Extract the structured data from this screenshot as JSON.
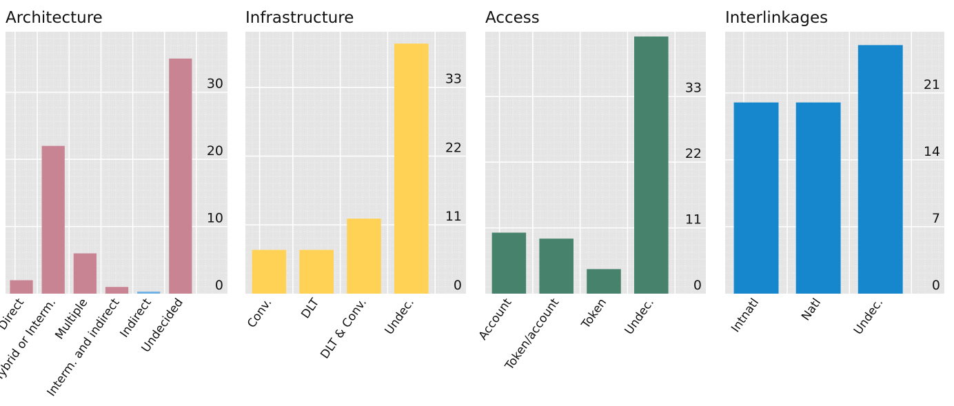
{
  "colors": {
    "panel_bg": "#e5e5e5",
    "grid": "#ffffff",
    "text": "#111111"
  },
  "chart_data": [
    {
      "type": "bar",
      "title": "Architecture",
      "categories": [
        "Direct",
        "Hybrid or Interm.",
        "Multiple",
        "Interm. and indirect",
        "Indirect",
        "Undecided"
      ],
      "values": [
        2,
        22,
        6,
        1,
        0.3,
        35
      ],
      "ylim": [
        0,
        39
      ],
      "yticks": [
        0,
        10,
        20,
        30
      ],
      "color": "#c98493",
      "bar_colors": [
        "#c98493",
        "#c98493",
        "#c98493",
        "#c98493",
        "#6fb1e4",
        "#c98493"
      ]
    },
    {
      "type": "bar",
      "title": "Infrastructure",
      "categories": [
        "Conv.",
        "DLT",
        "DLT & Conv.",
        "Undec."
      ],
      "values": [
        7,
        7,
        12,
        40
      ],
      "ylim": [
        0,
        41.9
      ],
      "yticks": [
        0,
        11,
        22,
        33
      ],
      "color": "#ffd154"
    },
    {
      "type": "bar",
      "title": "Access",
      "categories": [
        "Account",
        "Token/account",
        "Token",
        "Undec."
      ],
      "values": [
        10.2,
        9.2,
        4.1,
        43
      ],
      "ylim": [
        0,
        43.8
      ],
      "yticks": [
        0,
        11,
        22,
        33
      ],
      "color": "#46826c"
    },
    {
      "type": "bar",
      "title": "Interlinkages",
      "categories": [
        "Intnatl",
        "Natl",
        "Undec."
      ],
      "values": [
        20,
        20,
        26
      ],
      "ylim": [
        0,
        27.4
      ],
      "yticks": [
        0,
        7,
        14,
        21
      ],
      "color": "#1787cd"
    }
  ]
}
